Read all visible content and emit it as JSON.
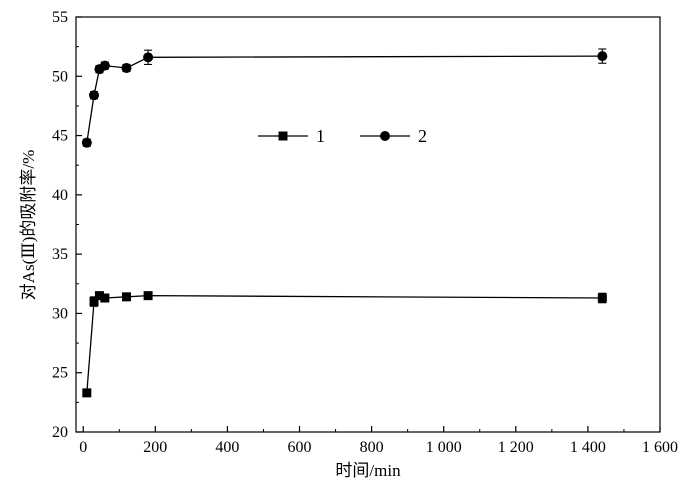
{
  "chart_data": {
    "type": "line",
    "xlabel": "时间/min",
    "ylabel": "对As(Ⅲ)的吸附率/%",
    "xlim": [
      -20,
      1600
    ],
    "ylim": [
      20,
      55
    ],
    "x_ticks": [
      0,
      200,
      400,
      600,
      800,
      1000,
      1200,
      1400,
      1600
    ],
    "x_tick_labels": [
      "0",
      "200",
      "400",
      "600",
      "800",
      "1 000",
      "1 200",
      "1 400",
      "1 600"
    ],
    "y_ticks": [
      20,
      25,
      30,
      35,
      40,
      45,
      50,
      55
    ],
    "y_tick_labels": [
      "20",
      "25",
      "30",
      "35",
      "40",
      "45",
      "50",
      "55"
    ],
    "grid": false,
    "legend": "center",
    "series": [
      {
        "name": "1",
        "marker": "square",
        "color": "#000000",
        "points": [
          {
            "x": 10,
            "y": 23.3,
            "err": 0.3
          },
          {
            "x": 30,
            "y": 31.0,
            "err": 0.4
          },
          {
            "x": 45,
            "y": 31.5,
            "err": 0.3
          },
          {
            "x": 60,
            "y": 31.3,
            "err": 0.3
          },
          {
            "x": 120,
            "y": 31.4,
            "err": 0.3
          },
          {
            "x": 180,
            "y": 31.5,
            "err": 0.3
          },
          {
            "x": 1440,
            "y": 31.3,
            "err": 0.4
          }
        ]
      },
      {
        "name": "2",
        "marker": "circle",
        "color": "#000000",
        "points": [
          {
            "x": 10,
            "y": 44.4,
            "err": 0.3
          },
          {
            "x": 30,
            "y": 48.4,
            "err": 0.3
          },
          {
            "x": 45,
            "y": 50.6,
            "err": 0.3
          },
          {
            "x": 60,
            "y": 50.9,
            "err": 0.3
          },
          {
            "x": 120,
            "y": 50.7,
            "err": 0.3
          },
          {
            "x": 180,
            "y": 51.6,
            "err": 0.6
          },
          {
            "x": 1440,
            "y": 51.7,
            "err": 0.6
          }
        ]
      }
    ]
  }
}
